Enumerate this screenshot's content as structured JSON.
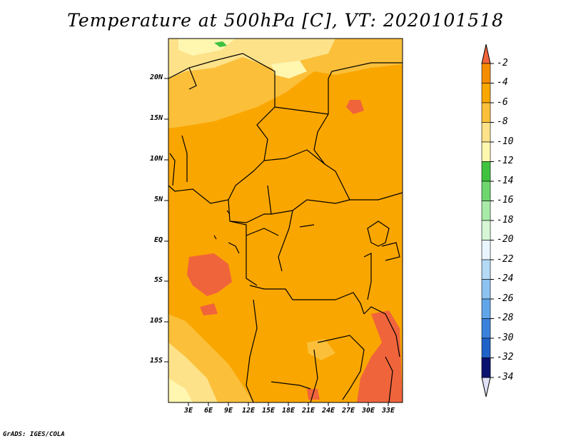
{
  "map": {
    "title": "Temperature at 500hPa [C], VT: 2020101518",
    "region": "Central Africa",
    "lon_labels": [
      "3E",
      "6E",
      "9E",
      "12E",
      "15E",
      "18E",
      "21E",
      "24E",
      "27E",
      "30E",
      "33E"
    ],
    "lat_labels": [
      "20N",
      "15N",
      "10N",
      "5N",
      "EQ",
      "5S",
      "10S",
      "15S"
    ],
    "credit": "GrADS: IGES/COLA"
  },
  "colorbar": {
    "levels": [
      "-2",
      "-4",
      "-6",
      "-8",
      "-10",
      "-12",
      "-14",
      "-16",
      "-18",
      "-20",
      "-22",
      "-24",
      "-26",
      "-28",
      "-30",
      "-32",
      "-34"
    ],
    "colors": {
      "c_gt_m2": "#f0643c",
      "c_m2_m4": "#f68c00",
      "c_m4_m6": "#faa600",
      "c_m6_m8": "#fbbf3a",
      "c_m8_m10": "#fde28a",
      "c_m10_m12": "#fff6b0",
      "c_m12_m14": "#3fc33f",
      "c_m14_m16": "#6ed66e",
      "c_m16_m18": "#a8eaa8",
      "c_m18_m20": "#d6f6d6",
      "c_m20_m22": "#eaf6ff",
      "c_m22_m24": "#b4daf6",
      "c_m24_m26": "#8cc3f0",
      "c_m26_m28": "#62a6ea",
      "c_m28_m30": "#3a82dc",
      "c_m30_m32": "#1f62c8",
      "c_m32_m34": "#0a3caa",
      "c_lt_m34": "#0c1270",
      "c_below": "#e0e0f6"
    }
  }
}
